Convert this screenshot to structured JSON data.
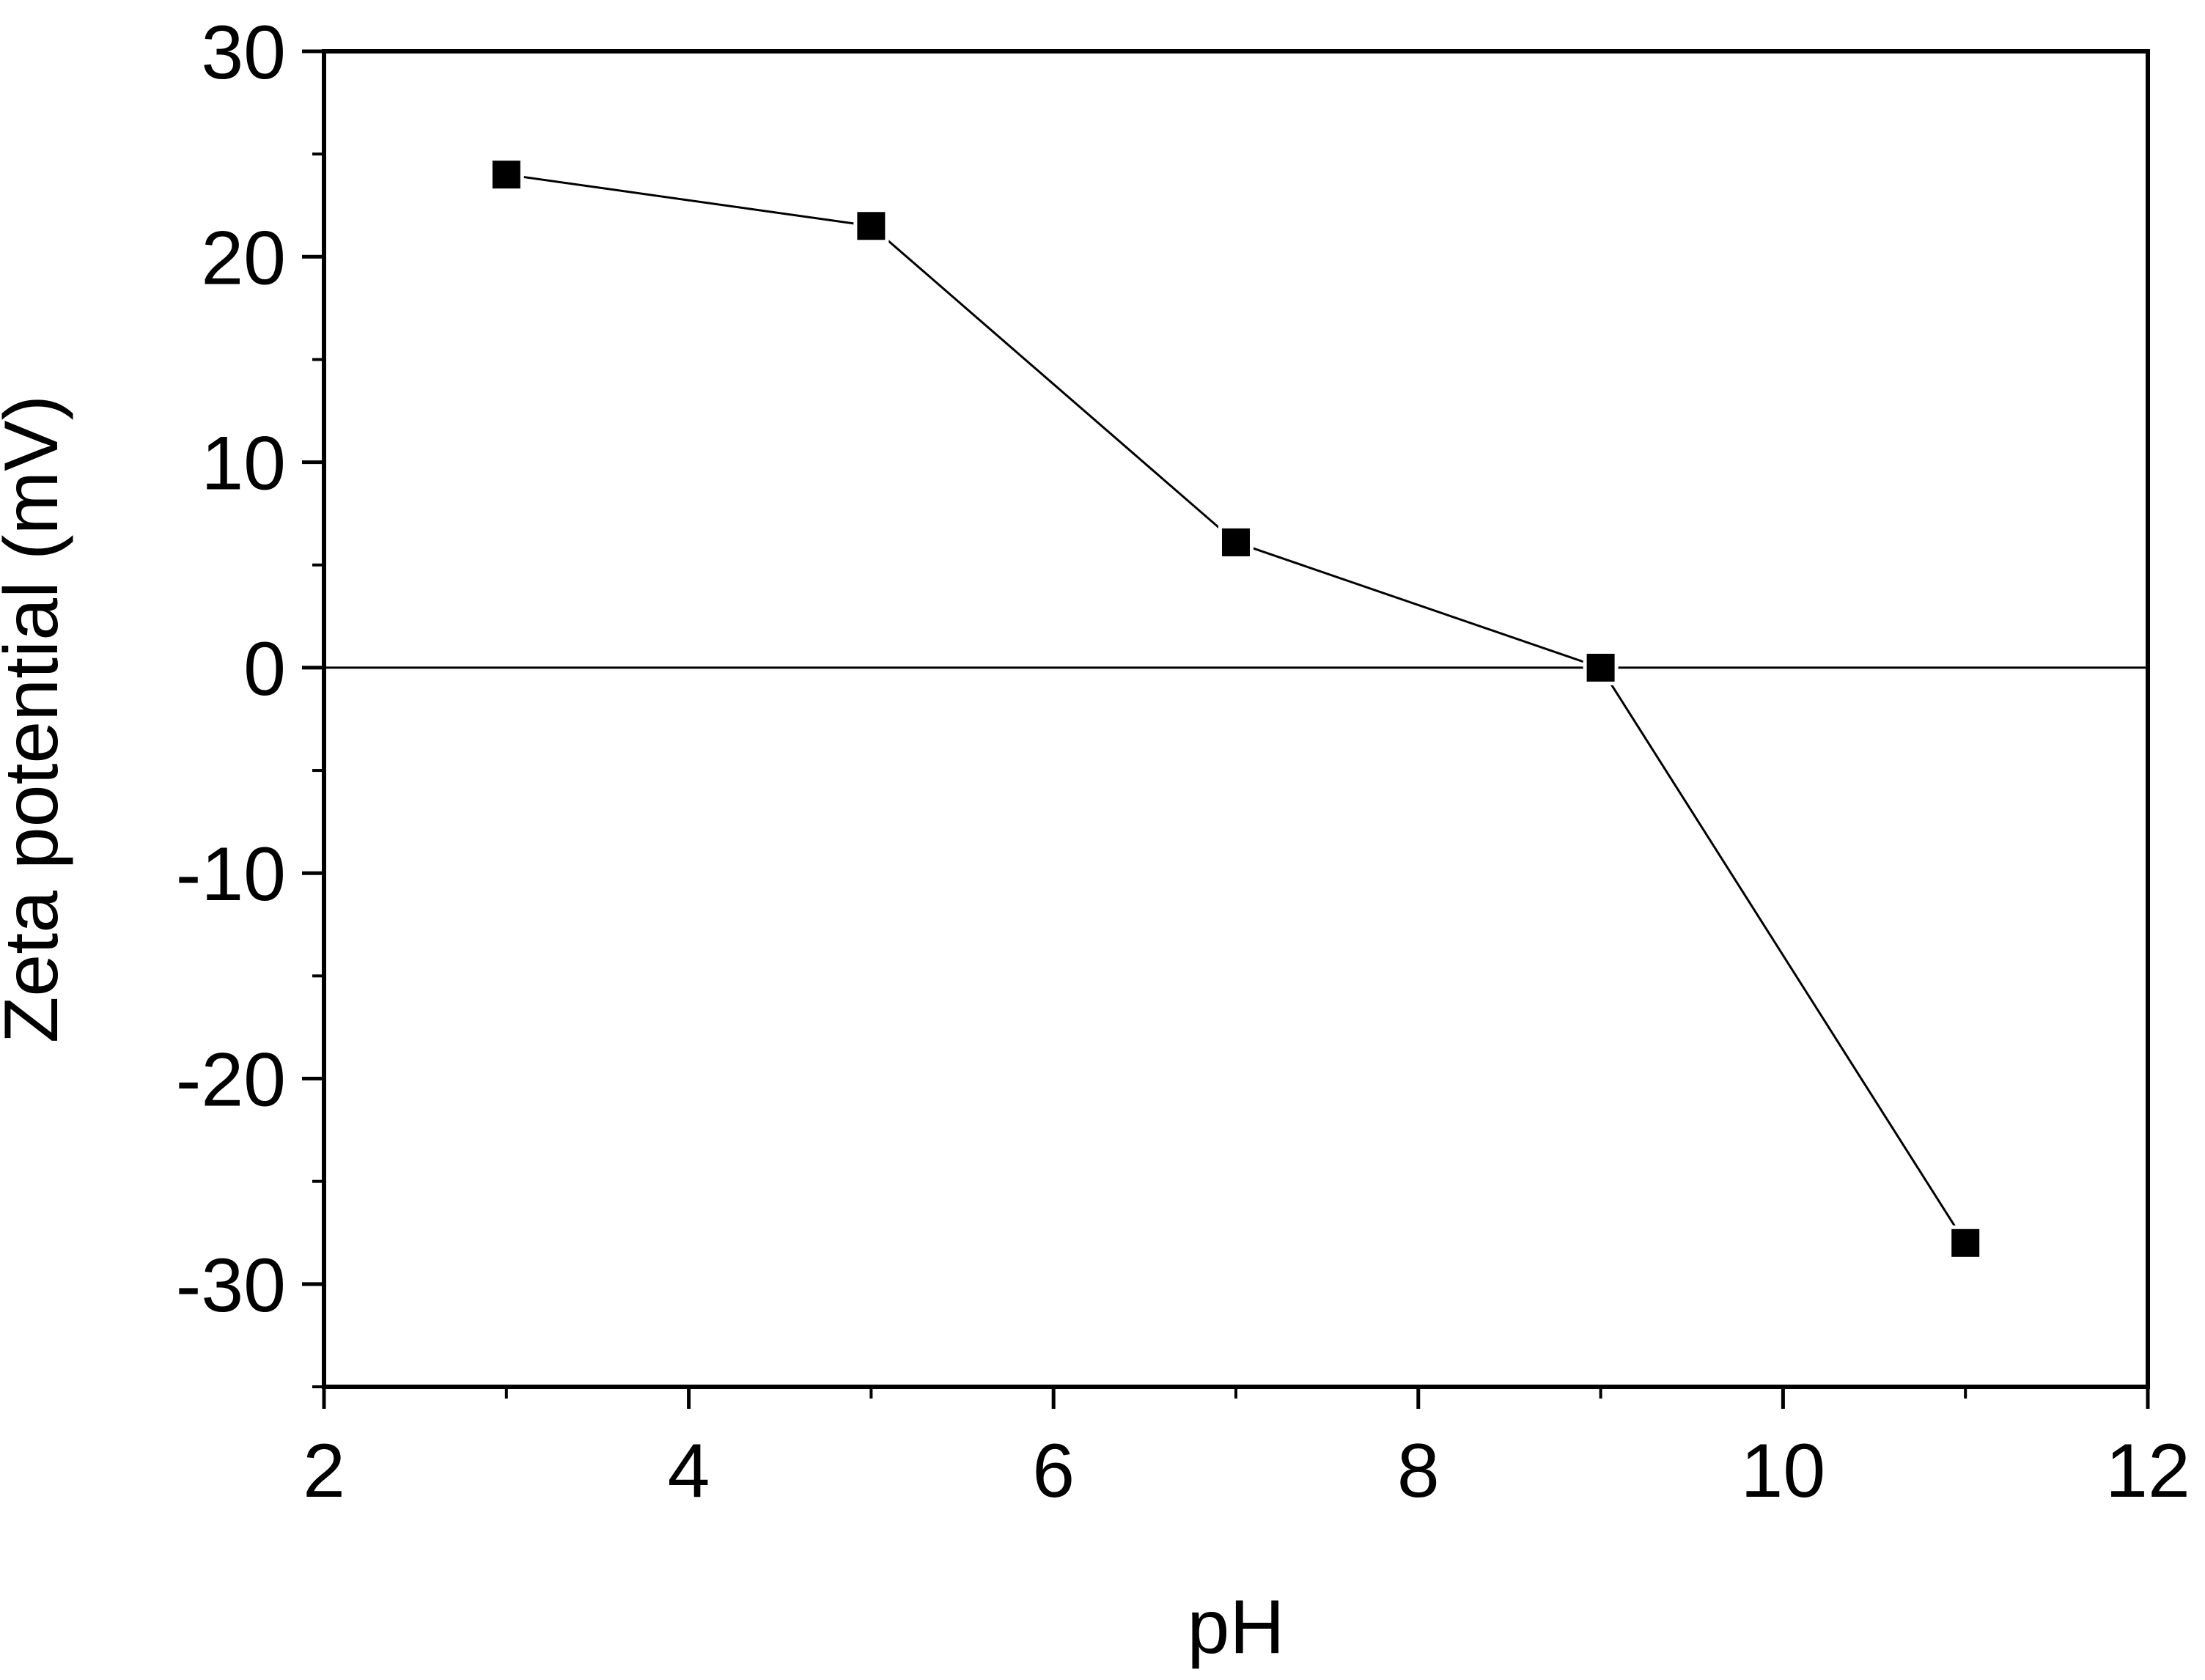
{
  "chart_data": {
    "type": "line",
    "title": "",
    "xlabel": "pH",
    "ylabel": "Zeta potential (mV)",
    "xlim": [
      2,
      12
    ],
    "ylim": [
      -35,
      30
    ],
    "x_ticks": [
      2,
      4,
      6,
      8,
      10,
      12
    ],
    "y_ticks": [
      -30,
      -20,
      -10,
      0,
      10,
      20,
      30
    ],
    "x_tick_labels": [
      "2",
      "4",
      "6",
      "8",
      "10",
      "12"
    ],
    "y_tick_labels": [
      "-30",
      "-20",
      "-10",
      "0",
      "10",
      "20",
      "30"
    ],
    "reference_line_y": 0,
    "grid": false,
    "marker": "square",
    "colors": {
      "line": "#000000",
      "marker": "#000000",
      "axis": "#000000"
    },
    "series": [
      {
        "name": "Zeta potential",
        "x": [
          3,
          5,
          7,
          9,
          11
        ],
        "values": [
          24,
          21.5,
          6.1,
          0,
          -28
        ]
      }
    ]
  }
}
